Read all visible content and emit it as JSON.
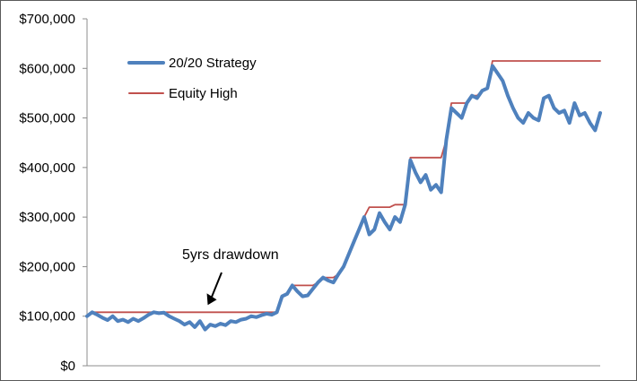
{
  "chart_data": {
    "type": "line",
    "title": "",
    "xlabel": "",
    "ylabel": "",
    "ylim": [
      0,
      700000
    ],
    "y_ticks": [
      "$700,000",
      "$600,000",
      "$500,000",
      "$400,000",
      "$300,000",
      "$200,000",
      "$100,000",
      "$0"
    ],
    "y_tick_values": [
      700000,
      600000,
      500000,
      400000,
      300000,
      200000,
      100000,
      0
    ],
    "x_range": [
      0,
      100
    ],
    "grid": false,
    "legend_position": "top-left",
    "series": [
      {
        "name": "20/20 Strategy",
        "color": "#4f81bd",
        "x": [
          0,
          1,
          2,
          3,
          4,
          5,
          6,
          7,
          8,
          9,
          10,
          11,
          12,
          13,
          14,
          15,
          16,
          17,
          18,
          19,
          20,
          21,
          22,
          23,
          24,
          25,
          26,
          27,
          28,
          29,
          30,
          31,
          32,
          33,
          34,
          35,
          36,
          37,
          38,
          39,
          40,
          41,
          42,
          43,
          44,
          45,
          46,
          47,
          48,
          49,
          50,
          51,
          52,
          53,
          54,
          55,
          56,
          57,
          58,
          59,
          60,
          61,
          62,
          63,
          64,
          65,
          66,
          67,
          68,
          69,
          70,
          71,
          72,
          73,
          74,
          75,
          76,
          77,
          78,
          79,
          80,
          81,
          82,
          83,
          84,
          85,
          86,
          87,
          88,
          89,
          90,
          91,
          92,
          93,
          94,
          95,
          96,
          97,
          98,
          99,
          100
        ],
        "values": [
          100000,
          108000,
          103000,
          97000,
          92000,
          100000,
          90000,
          93000,
          88000,
          95000,
          90000,
          96000,
          103000,
          108000,
          106000,
          107000,
          100000,
          95000,
          90000,
          83000,
          88000,
          78000,
          90000,
          73000,
          83000,
          80000,
          85000,
          82000,
          90000,
          88000,
          93000,
          95000,
          100000,
          98000,
          102000,
          105000,
          103000,
          108000,
          140000,
          145000,
          162000,
          150000,
          140000,
          142000,
          155000,
          168000,
          178000,
          172000,
          168000,
          185000,
          200000,
          225000,
          250000,
          275000,
          300000,
          265000,
          275000,
          308000,
          290000,
          275000,
          300000,
          290000,
          325000,
          415000,
          390000,
          370000,
          385000,
          355000,
          365000,
          350000,
          455000,
          520000,
          510000,
          500000,
          530000,
          545000,
          540000,
          555000,
          560000,
          605000,
          590000,
          575000,
          545000,
          520000,
          500000,
          490000,
          510000,
          500000,
          495000,
          540000,
          545000,
          520000,
          510000,
          515000,
          490000,
          530000,
          505000,
          510000,
          490000,
          475000,
          510000
        ]
      },
      {
        "name": "Equity High",
        "color": "#c0504d",
        "x": [
          0,
          1,
          2,
          3,
          4,
          5,
          6,
          7,
          8,
          9,
          10,
          11,
          12,
          13,
          14,
          15,
          16,
          17,
          18,
          19,
          20,
          21,
          22,
          23,
          24,
          25,
          26,
          27,
          28,
          29,
          30,
          31,
          32,
          33,
          34,
          35,
          36,
          37,
          38,
          39,
          40,
          41,
          42,
          43,
          44,
          45,
          46,
          47,
          48,
          49,
          50,
          51,
          52,
          53,
          54,
          55,
          56,
          57,
          58,
          59,
          60,
          61,
          62,
          63,
          64,
          65,
          66,
          67,
          68,
          69,
          70,
          71,
          72,
          73,
          74,
          75,
          76,
          77,
          78,
          79,
          80,
          81,
          82,
          83,
          84,
          85,
          86,
          87,
          88,
          89,
          90,
          91,
          92,
          93,
          94,
          95,
          96,
          97,
          98,
          99,
          100
        ],
        "values": [
          100000,
          108000,
          108000,
          108000,
          108000,
          108000,
          108000,
          108000,
          108000,
          108000,
          108000,
          108000,
          108000,
          108000,
          108000,
          108000,
          108000,
          108000,
          108000,
          108000,
          108000,
          108000,
          108000,
          108000,
          108000,
          108000,
          108000,
          108000,
          108000,
          108000,
          108000,
          108000,
          108000,
          108000,
          108000,
          108000,
          108000,
          108000,
          140000,
          145000,
          162000,
          162000,
          162000,
          162000,
          162000,
          168000,
          178000,
          178000,
          178000,
          185000,
          200000,
          225000,
          250000,
          275000,
          300000,
          320000,
          320000,
          320000,
          320000,
          320000,
          325000,
          325000,
          325000,
          420000,
          420000,
          420000,
          420000,
          420000,
          420000,
          420000,
          455000,
          530000,
          530000,
          530000,
          530000,
          545000,
          545000,
          555000,
          560000,
          615000,
          615000,
          615000,
          615000,
          615000,
          615000,
          615000,
          615000,
          615000,
          615000,
          615000,
          615000,
          615000,
          615000,
          615000,
          615000,
          615000,
          615000,
          615000,
          615000,
          615000,
          615000
        ]
      }
    ],
    "annotations": [
      {
        "text": "5yrs drawdown",
        "arrow_target_x": 23,
        "arrow_target_y": 108000
      }
    ]
  },
  "legend": {
    "items": [
      {
        "label": "20/20 Strategy",
        "color": "#4f81bd"
      },
      {
        "label": "Equity High",
        "color": "#c0504d"
      }
    ]
  }
}
